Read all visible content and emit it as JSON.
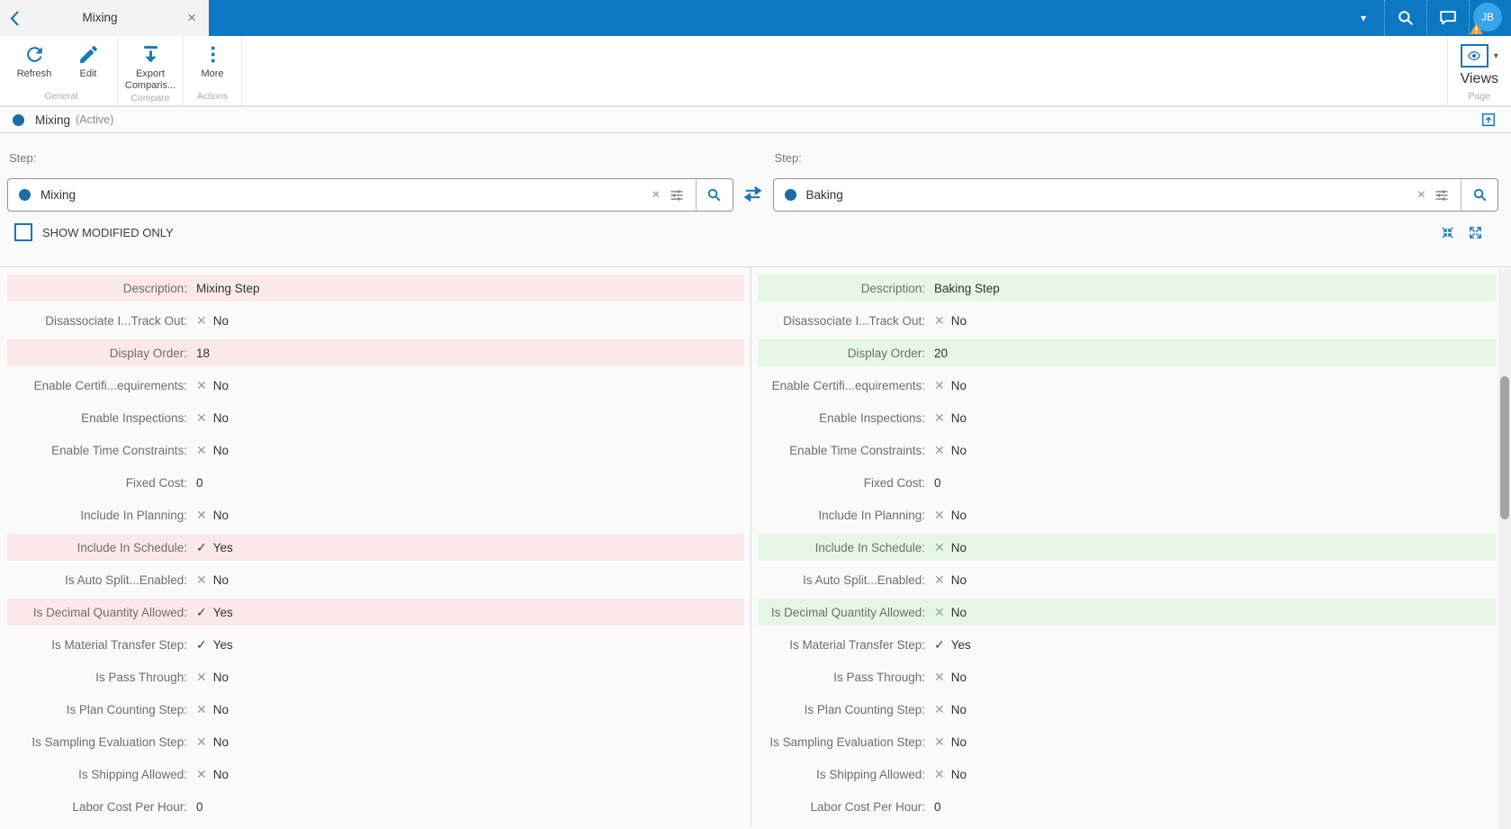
{
  "colors": {
    "topbar_blue": "#0c78c4",
    "accent_blue": "#1b78b5",
    "dot_blue": "#1a6da6",
    "modified_left_bg": "#fae8ea",
    "modified_right_bg": "#e6f7e6",
    "avatar_bg": "#38a4ea",
    "warning_orange": "#e9a13b"
  },
  "icons": {
    "close": "×",
    "clear": "×",
    "dropdown_caret": "▾"
  },
  "tabbar": {
    "tab_title": "Mixing"
  },
  "topbar": {
    "avatar_initials": "JB"
  },
  "ribbon": {
    "groups": [
      {
        "label": "General",
        "buttons": [
          {
            "label": "Refresh"
          },
          {
            "label": "Edit"
          }
        ]
      },
      {
        "label": "Compare",
        "buttons": [
          {
            "label": "Export Comparis..."
          }
        ]
      },
      {
        "label": "Actions",
        "buttons": [
          {
            "label": "More"
          }
        ]
      }
    ],
    "page_group": {
      "label": "Page",
      "views_label": "Views"
    }
  },
  "record_header": {
    "title": "Mixing",
    "status": "(Active)"
  },
  "compare_selectors": {
    "left": {
      "label": "Step:",
      "value": "Mixing"
    },
    "right": {
      "label": "Step:",
      "value": "Baking"
    }
  },
  "options": {
    "show_modified_label": "SHOW MODIFIED ONLY",
    "checked": false
  },
  "comparison": {
    "rows": [
      {
        "label": "Description:",
        "left": {
          "icon": "",
          "text": "Mixing Step"
        },
        "right": {
          "icon": "",
          "text": "Baking Step"
        },
        "modified": true
      },
      {
        "label": "Disassociate I...Track Out:",
        "left": {
          "icon": "✕",
          "text": "No"
        },
        "right": {
          "icon": "✕",
          "text": "No"
        },
        "modified": false
      },
      {
        "label": "Display Order:",
        "left": {
          "icon": "",
          "text": "18"
        },
        "right": {
          "icon": "",
          "text": "20"
        },
        "modified": true
      },
      {
        "label": "Enable Certifi...equirements:",
        "left": {
          "icon": "✕",
          "text": "No"
        },
        "right": {
          "icon": "✕",
          "text": "No"
        },
        "modified": false
      },
      {
        "label": "Enable Inspections:",
        "left": {
          "icon": "✕",
          "text": "No"
        },
        "right": {
          "icon": "✕",
          "text": "No"
        },
        "modified": false
      },
      {
        "label": "Enable Time Constraints:",
        "left": {
          "icon": "✕",
          "text": "No"
        },
        "right": {
          "icon": "✕",
          "text": "No"
        },
        "modified": false
      },
      {
        "label": "Fixed Cost:",
        "left": {
          "icon": "",
          "text": "0"
        },
        "right": {
          "icon": "",
          "text": "0"
        },
        "modified": false
      },
      {
        "label": "Include In Planning:",
        "left": {
          "icon": "✕",
          "text": "No"
        },
        "right": {
          "icon": "✕",
          "text": "No"
        },
        "modified": false
      },
      {
        "label": "Include In Schedule:",
        "left": {
          "icon": "✓",
          "text": "Yes"
        },
        "right": {
          "icon": "✕",
          "text": "No"
        },
        "modified": true
      },
      {
        "label": "Is Auto Split...Enabled:",
        "left": {
          "icon": "✕",
          "text": "No"
        },
        "right": {
          "icon": "✕",
          "text": "No"
        },
        "modified": false
      },
      {
        "label": "Is Decimal Quantity Allowed:",
        "left": {
          "icon": "✓",
          "text": "Yes"
        },
        "right": {
          "icon": "✕",
          "text": "No"
        },
        "modified": true
      },
      {
        "label": "Is Material Transfer Step:",
        "left": {
          "icon": "✓",
          "text": "Yes"
        },
        "right": {
          "icon": "✓",
          "text": "Yes"
        },
        "modified": false
      },
      {
        "label": "Is Pass Through:",
        "left": {
          "icon": "✕",
          "text": "No"
        },
        "right": {
          "icon": "✕",
          "text": "No"
        },
        "modified": false
      },
      {
        "label": "Is Plan Counting Step:",
        "left": {
          "icon": "✕",
          "text": "No"
        },
        "right": {
          "icon": "✕",
          "text": "No"
        },
        "modified": false
      },
      {
        "label": "Is Sampling Evaluation Step:",
        "left": {
          "icon": "✕",
          "text": "No"
        },
        "right": {
          "icon": "✕",
          "text": "No"
        },
        "modified": false
      },
      {
        "label": "Is Shipping Allowed:",
        "left": {
          "icon": "✕",
          "text": "No"
        },
        "right": {
          "icon": "✕",
          "text": "No"
        },
        "modified": false
      },
      {
        "label": "Labor Cost Per Hour:",
        "left": {
          "icon": "",
          "text": "0"
        },
        "right": {
          "icon": "",
          "text": "0"
        },
        "modified": false
      }
    ]
  }
}
